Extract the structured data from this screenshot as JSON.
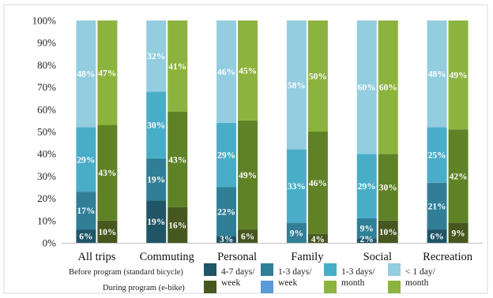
{
  "chart_data": {
    "type": "bar",
    "stacked": true,
    "categories": [
      "All trips",
      "Commuting",
      "Personal",
      "Family",
      "Social",
      "Recreation"
    ],
    "ylim": [
      0,
      100
    ],
    "yticks": [
      "0%",
      "10%",
      "20%",
      "30%",
      "40%",
      "50%",
      "60%",
      "70%",
      "80%",
      "90%",
      "100%"
    ],
    "grid": false,
    "groups": [
      {
        "name": "Before program (standard bicycle)",
        "series": [
          {
            "name": "4-7 days/ week",
            "color": "#1f5567",
            "values": [
              6,
              19,
              3,
              0,
              2,
              6
            ],
            "labels": [
              "6%",
              "19%",
              "3%",
              "",
              "2%",
              "6%"
            ]
          },
          {
            "name": "1-3 days/ week",
            "color": "#317f97",
            "values": [
              17,
              19,
              22,
              9,
              9,
              21
            ],
            "labels": [
              "17%",
              "19%",
              "22%",
              "9%",
              "9%",
              "21%"
            ]
          },
          {
            "name": "1-3 days/ month",
            "color": "#4aadc8",
            "values": [
              29,
              30,
              29,
              33,
              29,
              25
            ],
            "labels": [
              "29%",
              "30%",
              "29%",
              "33%",
              "29%",
              "25%"
            ]
          },
          {
            "name": "< 1 day/ month",
            "color": "#93cddf",
            "values": [
              48,
              32,
              46,
              58,
              60,
              48
            ],
            "labels": [
              "48%",
              "32%",
              "46%",
              "58%",
              "60%",
              "48%"
            ]
          }
        ]
      },
      {
        "name": "During program (e-bike)",
        "series": [
          {
            "name": "4-7 days/ week",
            "color": "#46571f",
            "values": [
              10,
              16,
              6,
              4,
              10,
              9
            ],
            "labels": [
              "10%",
              "16%",
              "6%",
              "4%",
              "10%",
              "9%"
            ]
          },
          {
            "name": "1-3 days/ week",
            "color": "#5a9ad6",
            "values": [
              0,
              0,
              0,
              0,
              0,
              0
            ],
            "labels": [
              "",
              "",
              "",
              "",
              "",
              ""
            ]
          },
          {
            "name": "1-3 days/ month",
            "color": "#5f8226",
            "values": [
              43,
              43,
              49,
              46,
              30,
              42
            ],
            "labels": [
              "43%",
              "43%",
              "49%",
              "46%",
              "30%",
              "42%"
            ]
          },
          {
            "name": "< 1 day/ month",
            "color": "#8db33f",
            "values": [
              47,
              41,
              45,
              50,
              60,
              49
            ],
            "labels": [
              "47%",
              "41%",
              "45%",
              "50%",
              "60%",
              "49%"
            ]
          }
        ]
      }
    ],
    "legend": {
      "position": "bottom",
      "row_labels": [
        "Before program (standard bicycle)",
        "During program (e-bike)"
      ],
      "entries": [
        "4-7 days/ week",
        "1-3 days/ week",
        "1-3 days/ month",
        "< 1 day/ month"
      ],
      "before_colors": [
        "#1f5567",
        "#317f97",
        "#4aadc8",
        "#93cddf"
      ],
      "during_colors": [
        "#46571f",
        "#5a9ad6",
        "#8db33f",
        "#8db33f"
      ]
    }
  }
}
